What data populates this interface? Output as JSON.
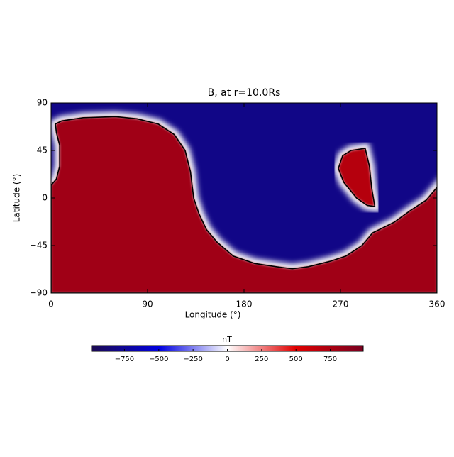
{
  "chart_data": {
    "type": "map",
    "title": "B, at r=10.0Rs",
    "x_label": "Longitude (°)",
    "y_label": "Latitude (°)",
    "xlim": [
      0,
      360
    ],
    "ylim": [
      -90,
      90
    ],
    "xticks": [
      0,
      90,
      180,
      270,
      360
    ],
    "yticks": [
      {
        "value": -90,
        "label": "−90"
      },
      {
        "value": -45,
        "label": "−45"
      },
      0,
      45,
      90
    ],
    "colorbar_label": "nT",
    "clim": [
      -990,
      990
    ],
    "colorbar_ticks": [
      {
        "value": -750,
        "label": "−750"
      },
      {
        "value": -500,
        "label": "−500"
      },
      {
        "value": -250,
        "label": "−250"
      },
      0,
      250,
      500,
      750
    ],
    "colormap": [
      "#1c0a50",
      "#0000e0",
      "#ffffff",
      "#e00000",
      "#780020"
    ],
    "background_value": -800,
    "regions": [
      {
        "value": 800,
        "boundary": [
          [
            0,
            -90
          ],
          [
            0,
            12
          ],
          [
            5,
            18
          ],
          [
            8,
            30
          ],
          [
            8,
            50
          ],
          [
            5,
            62
          ],
          [
            4,
            70
          ],
          [
            10,
            73
          ],
          [
            30,
            76
          ],
          [
            60,
            77
          ],
          [
            80,
            75
          ],
          [
            100,
            70
          ],
          [
            115,
            60
          ],
          [
            125,
            45
          ],
          [
            130,
            25
          ],
          [
            133,
            0
          ],
          [
            138,
            -15
          ],
          [
            145,
            -30
          ],
          [
            155,
            -42
          ],
          [
            170,
            -55
          ],
          [
            190,
            -62
          ],
          [
            210,
            -65
          ],
          [
            225,
            -67
          ],
          [
            240,
            -65
          ],
          [
            260,
            -60
          ],
          [
            275,
            -55
          ],
          [
            290,
            -45
          ],
          [
            300,
            -33
          ],
          [
            310,
            -28
          ],
          [
            320,
            -23
          ],
          [
            335,
            -12
          ],
          [
            350,
            -2
          ],
          [
            360,
            10
          ],
          [
            360,
            -90
          ]
        ]
      },
      {
        "value": 700,
        "boundary": [
          [
            272,
            40
          ],
          [
            280,
            45
          ],
          [
            293,
            47
          ],
          [
            297,
            30
          ],
          [
            299,
            10
          ],
          [
            302,
            -8
          ],
          [
            295,
            -7
          ],
          [
            285,
            0
          ],
          [
            273,
            15
          ],
          [
            268,
            28
          ]
        ]
      }
    ]
  }
}
